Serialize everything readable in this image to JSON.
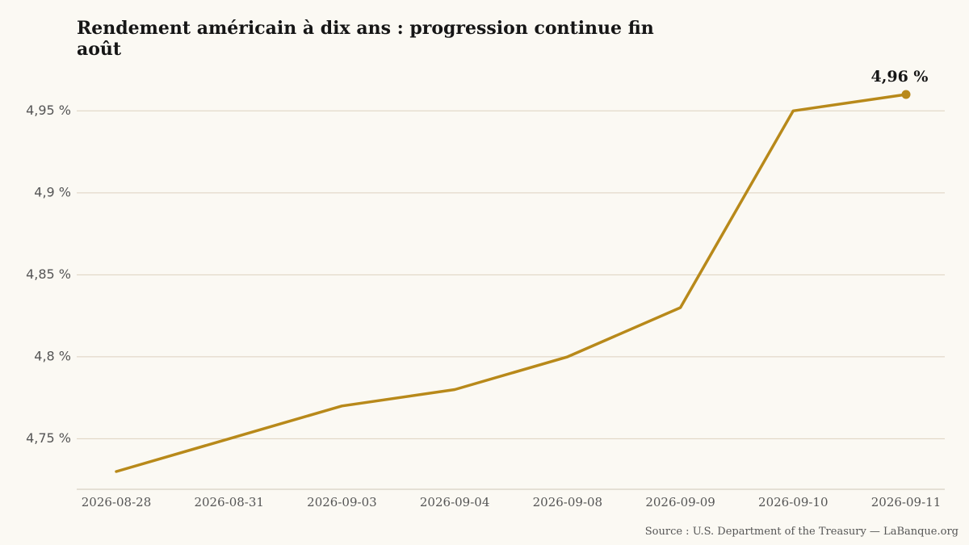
{
  "chart_data": {
    "type": "line",
    "title": "Rendement américain à dix ans : progression continue fin août",
    "categories": [
      "2026-08-28",
      "2026-08-31",
      "2026-09-03",
      "2026-09-04",
      "2026-09-08",
      "2026-09-09",
      "2026-09-10",
      "2026-09-11"
    ],
    "series": [
      {
        "values": [
          4.73,
          4.75,
          4.77,
          4.78,
          4.8,
          4.83,
          4.95,
          4.96
        ]
      }
    ],
    "ylim": [
      4.72,
      4.965
    ],
    "yticks": [
      4.75,
      4.8,
      4.85,
      4.9,
      4.95
    ],
    "ytick_labels": [
      "4,75 %",
      "4,8 %",
      "4,85 %",
      "4,9 %",
      "4,95 %"
    ],
    "end_label": "4,96 %",
    "grid": "horizontal",
    "line_color": "#b8891a",
    "gridline_color": "#ddd2c0",
    "axis_color": "#cfc7b7",
    "background_color": "#fbf9f3"
  },
  "source": "Source : U.S. Department of the Treasury — LaBanque.org"
}
